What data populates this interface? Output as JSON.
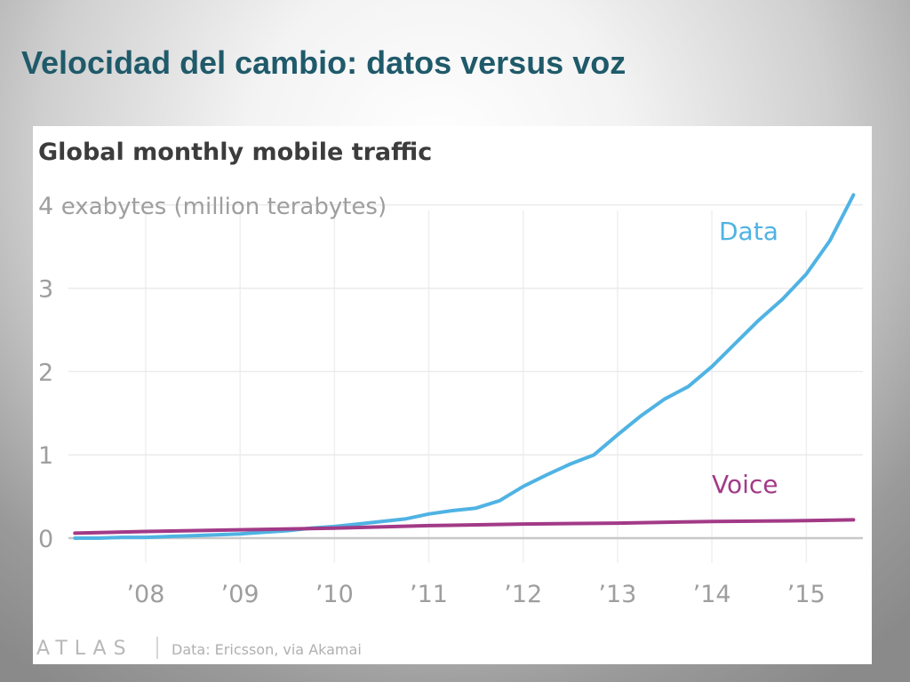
{
  "slide": {
    "title": "Velocidad del cambio: datos versus voz"
  },
  "colors": {
    "data": "#4fb3e3",
    "voice": "#a23a87"
  },
  "footer": {
    "brand": "ATLAS",
    "source": "Data: Ericsson, via Akamai"
  },
  "chart_data": {
    "type": "line",
    "title": "Global monthly mobile traffic",
    "ylabel": "exabytes (million terabytes)",
    "ylim": [
      0,
      4.2
    ],
    "xlim": [
      2007.2,
      2015.6
    ],
    "grid": true,
    "y_ticks": [
      0,
      1,
      2,
      3,
      4
    ],
    "x_ticks": [
      {
        "value": 2008,
        "label": "’08"
      },
      {
        "value": 2009,
        "label": "’09"
      },
      {
        "value": 2010,
        "label": "’10"
      },
      {
        "value": 2011,
        "label": "’11"
      },
      {
        "value": 2012,
        "label": "’12"
      },
      {
        "value": 2013,
        "label": "’13"
      },
      {
        "value": 2014,
        "label": "’14"
      },
      {
        "value": 2015,
        "label": "’15"
      }
    ],
    "series": [
      {
        "name": "Data",
        "color_key": "data",
        "points": [
          [
            2007.25,
            0.0
          ],
          [
            2007.5,
            0.0
          ],
          [
            2007.75,
            0.01
          ],
          [
            2008.0,
            0.01
          ],
          [
            2008.25,
            0.02
          ],
          [
            2008.5,
            0.03
          ],
          [
            2008.75,
            0.04
          ],
          [
            2009.0,
            0.05
          ],
          [
            2009.25,
            0.07
          ],
          [
            2009.5,
            0.09
          ],
          [
            2009.75,
            0.12
          ],
          [
            2010.0,
            0.14
          ],
          [
            2010.25,
            0.17
          ],
          [
            2010.5,
            0.2
          ],
          [
            2010.75,
            0.23
          ],
          [
            2011.0,
            0.29
          ],
          [
            2011.25,
            0.33
          ],
          [
            2011.5,
            0.36
          ],
          [
            2011.75,
            0.45
          ],
          [
            2012.0,
            0.62
          ],
          [
            2012.25,
            0.76
          ],
          [
            2012.5,
            0.89
          ],
          [
            2012.75,
            1.0
          ],
          [
            2013.0,
            1.24
          ],
          [
            2013.25,
            1.47
          ],
          [
            2013.5,
            1.67
          ],
          [
            2013.75,
            1.82
          ],
          [
            2014.0,
            2.06
          ],
          [
            2014.25,
            2.34
          ],
          [
            2014.5,
            2.62
          ],
          [
            2014.75,
            2.87
          ],
          [
            2015.0,
            3.17
          ],
          [
            2015.25,
            3.57
          ],
          [
            2015.5,
            4.12
          ]
        ]
      },
      {
        "name": "Voice",
        "color_key": "voice",
        "points": [
          [
            2007.25,
            0.06
          ],
          [
            2008.0,
            0.08
          ],
          [
            2009.0,
            0.1
          ],
          [
            2010.0,
            0.12
          ],
          [
            2011.0,
            0.15
          ],
          [
            2012.0,
            0.17
          ],
          [
            2013.0,
            0.18
          ],
          [
            2014.0,
            0.2
          ],
          [
            2015.0,
            0.21
          ],
          [
            2015.5,
            0.22
          ]
        ]
      }
    ]
  }
}
